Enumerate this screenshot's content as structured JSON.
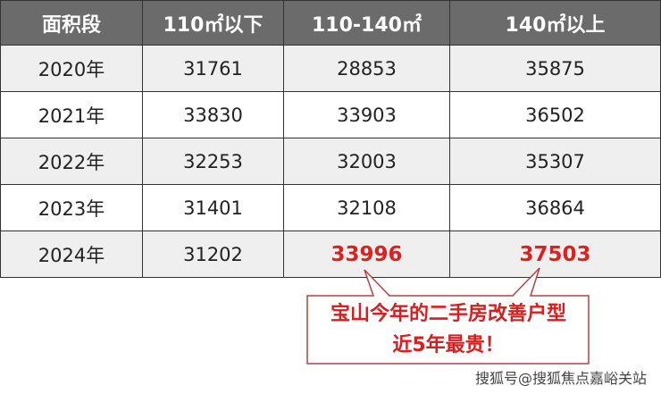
{
  "table": {
    "headers": [
      "面积段",
      "110㎡以下",
      "110-140㎡",
      "140㎡以上"
    ],
    "rows": [
      {
        "year": "2020年",
        "a": "31761",
        "b": "28853",
        "c": "35875"
      },
      {
        "year": "2021年",
        "a": "33830",
        "b": "33903",
        "c": "36502"
      },
      {
        "year": "2022年",
        "a": "32253",
        "b": "32003",
        "c": "35307"
      },
      {
        "year": "2023年",
        "a": "31401",
        "b": "32108",
        "c": "36864"
      },
      {
        "year": "2024年",
        "a": "31202",
        "b": "33996",
        "c": "37503"
      }
    ]
  },
  "callout": {
    "line1": "宝山今年的二手房改善户型",
    "line2": "近5年最贵！"
  },
  "watermark": "搜狐号@搜狐焦点嘉峪关站",
  "colors": {
    "header_bg": "#6b6b6b",
    "highlight": "#e02020",
    "alt_row": "#efefef"
  }
}
